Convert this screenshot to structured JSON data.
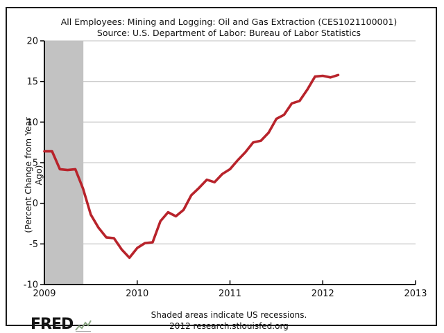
{
  "header": {
    "title": "All Employees: Mining and Logging: Oil and Gas Extraction (CES1021100001)",
    "subtitle": "Source: U.S. Department of Labor: Bureau of Labor Statistics"
  },
  "chart_data": {
    "type": "line",
    "title": "All Employees: Mining and Logging: Oil and Gas Extraction (CES1021100001)",
    "subtitle": "Source: U.S. Department of Labor: Bureau of Labor Statistics",
    "xlabel": "",
    "ylabel": "(Percent Change from Year Ago)",
    "ylim": [
      -10,
      20
    ],
    "y_ticks": [
      20,
      15,
      10,
      5,
      0,
      -5,
      -10
    ],
    "x_ticks": [
      "2009",
      "2010",
      "2011",
      "2012",
      "2013"
    ],
    "xlim_years": [
      2009,
      2013
    ],
    "grid": true,
    "legend_position": "none",
    "frequency": "monthly",
    "start_month": "2009-01",
    "end_month": "2012-03",
    "series": [
      {
        "name": "All Employees: Oil and Gas Extraction, Percent Change from Year Ago",
        "color": "#b8232b",
        "values": [
          6.4,
          6.4,
          4.2,
          4.1,
          4.2,
          1.8,
          -1.4,
          -3.0,
          -4.2,
          -4.3,
          -5.7,
          -6.7,
          -5.5,
          -4.9,
          -4.8,
          -2.2,
          -1.1,
          -1.6,
          -0.8,
          1.0,
          1.9,
          2.9,
          2.6,
          3.6,
          4.2,
          5.3,
          6.3,
          7.5,
          7.7,
          8.7,
          10.4,
          10.9,
          12.3,
          12.6,
          14.0,
          15.6,
          15.7,
          15.5,
          15.8
        ]
      }
    ],
    "recession_bands": [
      {
        "start_year": 2009.0,
        "end_year": 2009.42
      }
    ]
  },
  "footer": {
    "note": "Shaded areas indicate US recessions.",
    "attribution": "2012 research.stlouisfed.org",
    "logo_text": "FRED"
  },
  "colors": {
    "line": "#b8232b",
    "recession_band": "#c2c2c2",
    "gridline": "#cccccc",
    "axis": "#000000",
    "text": "#111111"
  }
}
